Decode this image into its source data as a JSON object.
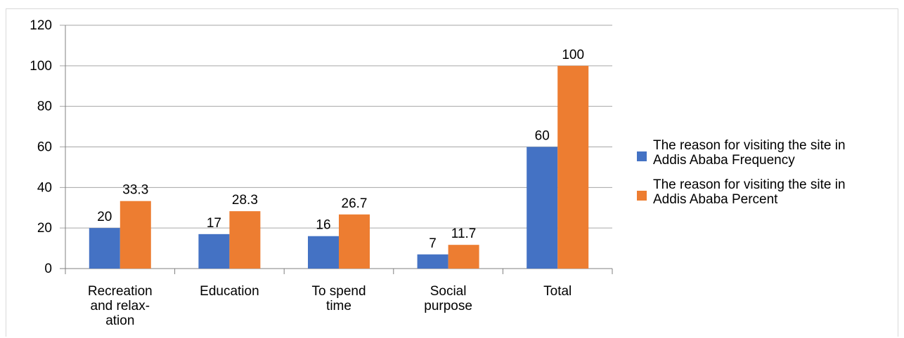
{
  "chart_data": {
    "type": "bar",
    "categories": [
      [
        "Recreation",
        "and relax-",
        "ation"
      ],
      [
        "Education"
      ],
      [
        "To spend",
        "time"
      ],
      [
        "Social",
        "purpose"
      ],
      [
        "Total"
      ]
    ],
    "series": [
      {
        "name": [
          "The reason for visiting the site in",
          "Addis Ababa Frequency"
        ],
        "values": [
          20,
          17,
          16,
          7,
          60
        ],
        "labels": [
          "20",
          "17",
          "16",
          "7",
          "60"
        ],
        "color": "#4472c4"
      },
      {
        "name": [
          "The reason for visiting the site in",
          "Addis Ababa Percent"
        ],
        "values": [
          33.3,
          28.3,
          26.7,
          11.7,
          100
        ],
        "labels": [
          "33.3",
          "28.3",
          "26.7",
          "11.7",
          "100"
        ],
        "color": "#ed7d31"
      }
    ],
    "yticks": [
      "0",
      "20",
      "40",
      "60",
      "80",
      "100",
      "120"
    ],
    "ylim": [
      0,
      120
    ],
    "grid": true,
    "legend_position": "right"
  }
}
